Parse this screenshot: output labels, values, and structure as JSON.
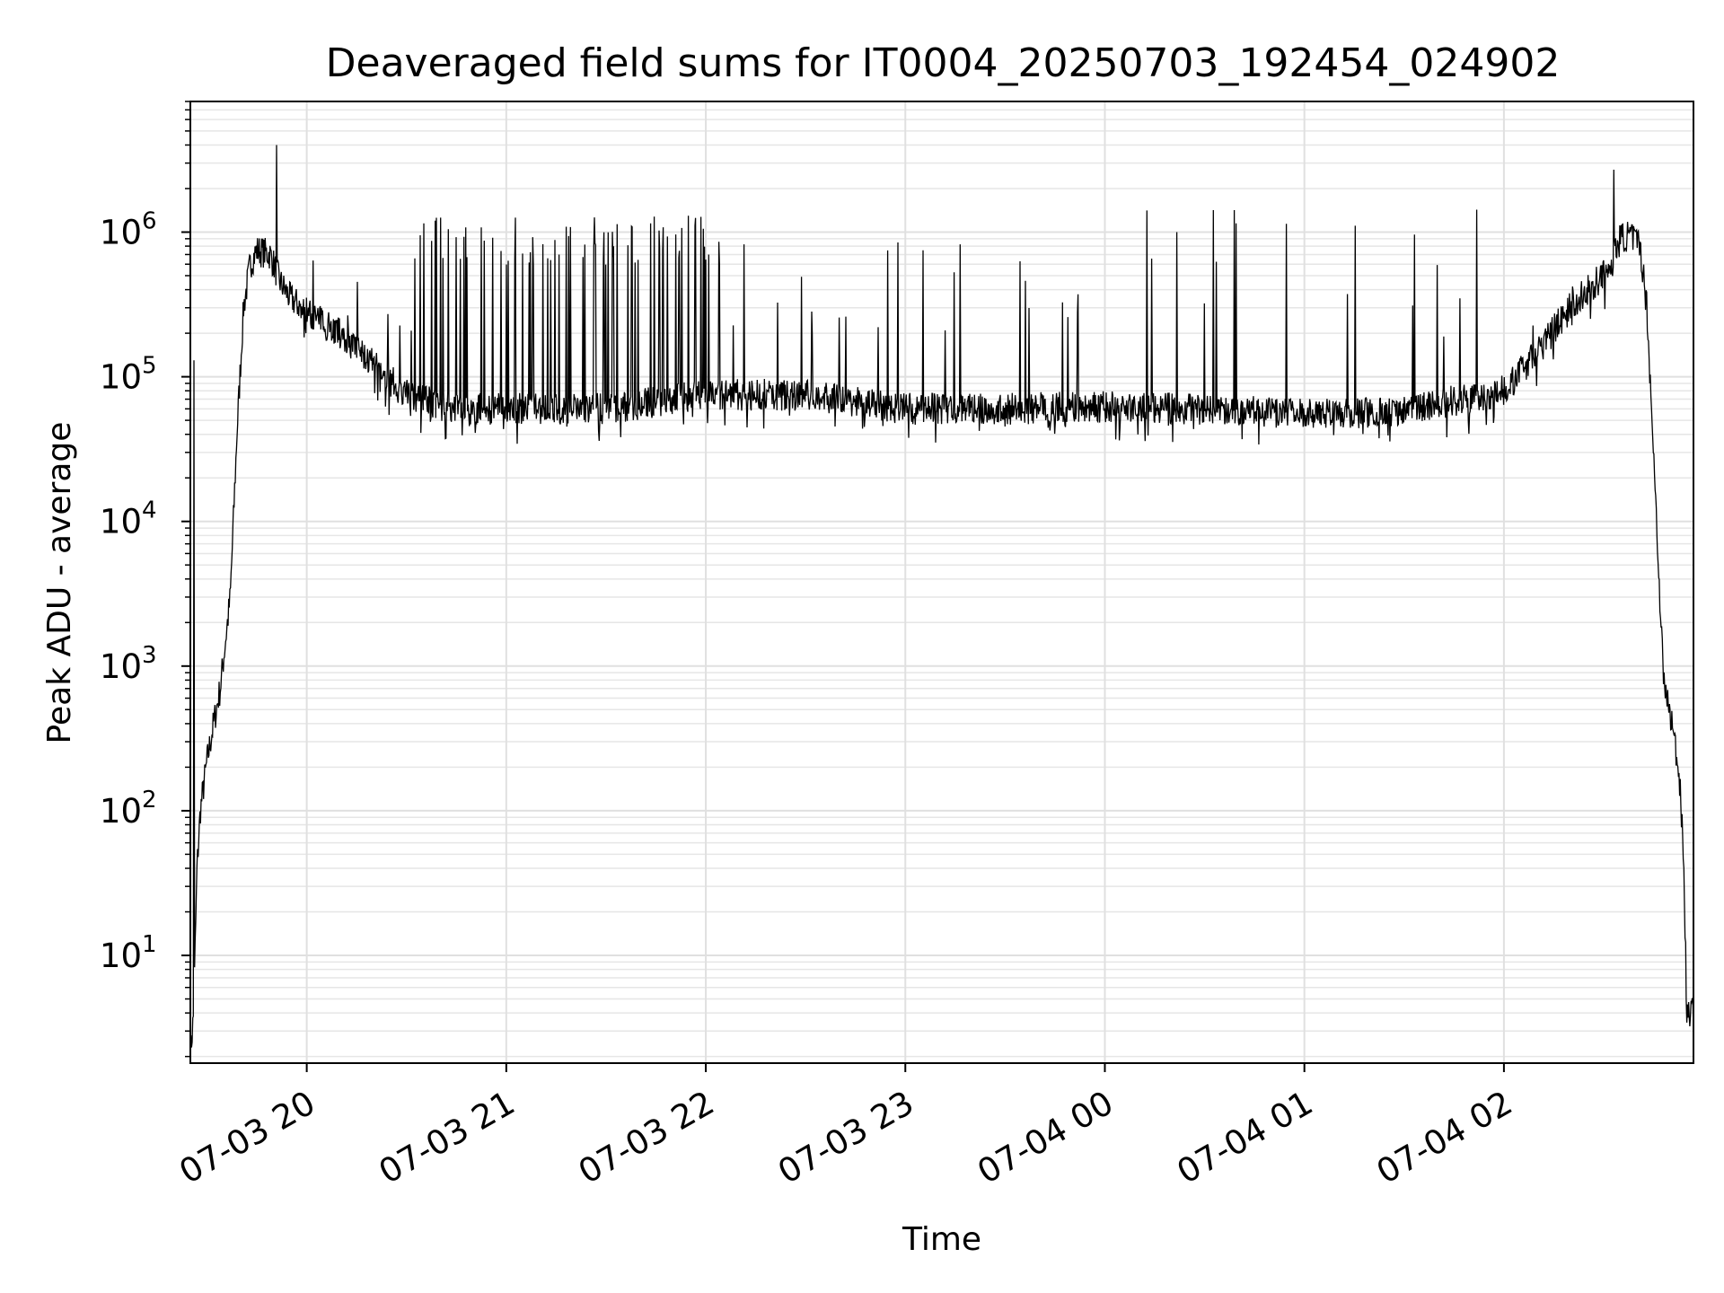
{
  "chart_data": {
    "type": "line",
    "title": "Deaveraged field sums for IT0004_20250703_192454_024902",
    "xlabel": "Time",
    "ylabel": "Peak ADU - average",
    "yscale": "log",
    "grid": true,
    "line_color": "#000000",
    "x_range": [
      "2025-07-03 19:25",
      "2025-07-04 02:57"
    ],
    "ylim": [
      1.8,
      8000000
    ],
    "x_ticks": [
      {
        "value": "2025-07-03 20:00",
        "label": "07-03 20"
      },
      {
        "value": "2025-07-03 21:00",
        "label": "07-03 21"
      },
      {
        "value": "2025-07-03 22:00",
        "label": "07-03 22"
      },
      {
        "value": "2025-07-03 23:00",
        "label": "07-03 23"
      },
      {
        "value": "2025-07-04 00:00",
        "label": "07-04 00"
      },
      {
        "value": "2025-07-04 01:00",
        "label": "07-04 01"
      },
      {
        "value": "2025-07-04 02:00",
        "label": "07-04 02"
      }
    ],
    "y_ticks": [
      {
        "value": 10,
        "label": "10",
        "exp": "1"
      },
      {
        "value": 100,
        "label": "10",
        "exp": "2"
      },
      {
        "value": 1000,
        "label": "10",
        "exp": "3"
      },
      {
        "value": 10000,
        "label": "10",
        "exp": "4"
      },
      {
        "value": 100000,
        "label": "10",
        "exp": "5"
      },
      {
        "value": 1000000,
        "label": "10",
        "exp": "6"
      }
    ],
    "series": [
      {
        "baseline": {
          "x": [
            "2025-07-03 19:25",
            "2025-07-03 19:26",
            "2025-07-03 19:27",
            "2025-07-03 19:28",
            "2025-07-03 19:30",
            "2025-07-03 19:32",
            "2025-07-03 19:34",
            "2025-07-03 19:37",
            "2025-07-03 19:39",
            "2025-07-03 19:41",
            "2025-07-03 19:43",
            "2025-07-03 19:45",
            "2025-07-03 19:49",
            "2025-07-03 19:52",
            "2025-07-03 19:55",
            "2025-07-03 19:57",
            "2025-07-03 20:00",
            "2025-07-03 20:10",
            "2025-07-03 20:20",
            "2025-07-03 20:30",
            "2025-07-03 20:45",
            "2025-07-03 21:00",
            "2025-07-03 21:30",
            "2025-07-03 22:00",
            "2025-07-03 22:30",
            "2025-07-03 23:00",
            "2025-07-03 23:30",
            "2025-07-04 00:00",
            "2025-07-04 00:30",
            "2025-07-04 01:00",
            "2025-07-04 01:30",
            "2025-07-04 02:00",
            "2025-07-04 02:10",
            "2025-07-04 02:20",
            "2025-07-04 02:30",
            "2025-07-04 02:35",
            "2025-07-04 02:38",
            "2025-07-04 02:41",
            "2025-07-04 02:43",
            "2025-07-04 02:45",
            "2025-07-04 02:48",
            "2025-07-04 02:51",
            "2025-07-04 02:53",
            "2025-07-04 02:54",
            "2025-07-04 02:55",
            "2025-07-04 02:57"
          ],
          "y": [
            2,
            4,
            40,
            100,
            220,
            400,
            700,
            3000,
            40000,
            300000,
            600000,
            750000,
            700000,
            450000,
            350000,
            320000,
            280000,
            200000,
            120000,
            75000,
            60000,
            60000,
            60000,
            75000,
            75000,
            60000,
            60000,
            62000,
            60000,
            55000,
            58000,
            80000,
            150000,
            300000,
            500000,
            900000,
            950000,
            800000,
            300000,
            30000,
            800,
            350,
            150,
            50,
            4,
            4
          ]
        },
        "spikes": [
          {
            "x": "2025-07-03 19:26",
            "y": 130000
          },
          {
            "x": "2025-07-03 19:51",
            "y": 4000000
          },
          {
            "x": "2025-07-04 02:33",
            "y": 2700000
          }
        ],
        "fluctuation": {
          "x_start": "2025-07-03 19:58",
          "x_end": "2025-07-04 02:33",
          "dense_upper": 1300000,
          "sparse_upper": 1500000,
          "dense_start": "2025-07-03 20:35",
          "dense_end": "2025-07-03 22:05"
        }
      }
    ]
  }
}
